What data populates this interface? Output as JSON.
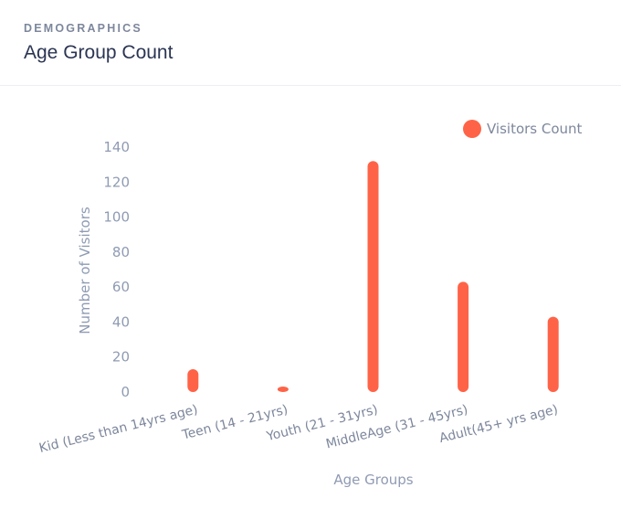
{
  "header": {
    "eyebrow": "DEMOGRAPHICS",
    "title": "Age Group Count"
  },
  "chart_data": {
    "type": "bar",
    "categories": [
      "Kid (Less than 14yrs age)",
      "Teen (14 - 21yrs)",
      "Youth (21 - 31yrs)",
      "MiddleAge (31 - 45yrs)",
      "Adult(45+ yrs age)"
    ],
    "series": [
      {
        "name": "Visitors Count",
        "values": [
          12,
          1,
          131,
          62,
          42
        ]
      }
    ],
    "xlabel": "Age Groups",
    "ylabel": "Number of Visitors",
    "ylim": [
      0,
      140
    ],
    "yticks": [
      0,
      20,
      40,
      60,
      80,
      100,
      120,
      140
    ],
    "grid": false,
    "legend_position": "top-right",
    "colors": {
      "bar": "#ff6347",
      "axis_text": "#7d879c",
      "title": "#2b3553"
    }
  }
}
